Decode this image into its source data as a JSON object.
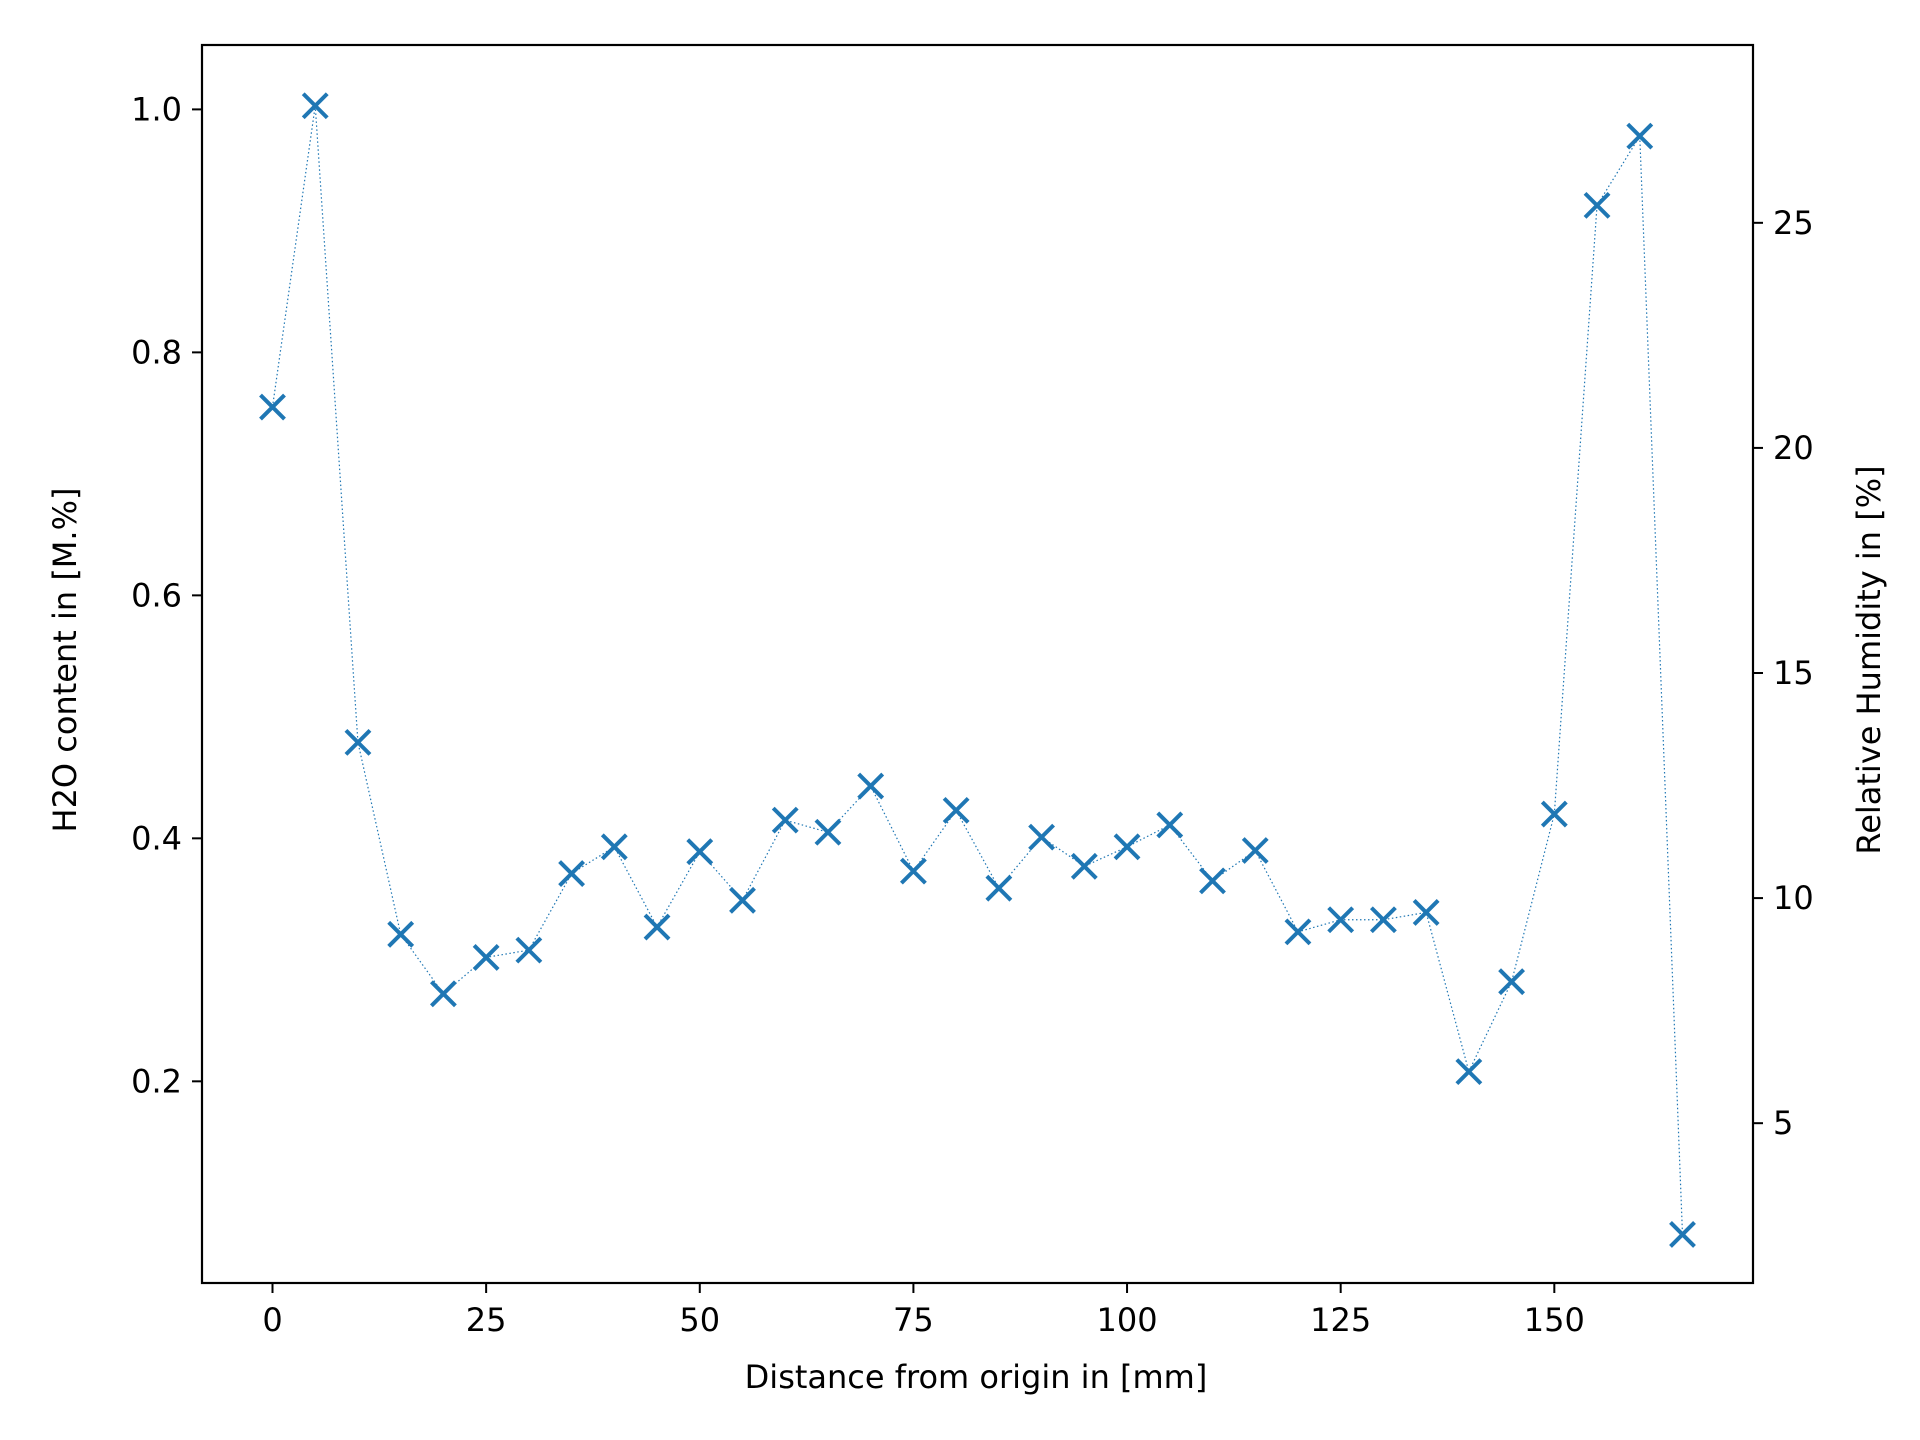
{
  "chart_data": {
    "type": "scatter",
    "title": "",
    "xlabel": "Distance from origin in [mm]",
    "ylabel": "H2O content in [M.%]",
    "y2label": "Relative Humidity in [%]",
    "xlim": [
      -8.25,
      173.25
    ],
    "ylim": [
      0.034,
      1.053
    ],
    "y2lim": [
      1.45,
      28.95
    ],
    "xticks": [
      0,
      25,
      50,
      75,
      100,
      125,
      150
    ],
    "yticks": [
      0.2,
      0.4,
      0.6,
      0.8,
      1.0
    ],
    "ytick_labels": [
      "0.2",
      "0.4",
      "0.6",
      "0.8",
      "1.0"
    ],
    "y2ticks": [
      5,
      10,
      15,
      20,
      25
    ],
    "grid": false,
    "legend": "none",
    "marker": "x",
    "line_style": "dotted",
    "color": "#1f77b4",
    "series": [
      {
        "axis": "left",
        "x": [
          0,
          5,
          10,
          15,
          20,
          25,
          30,
          35,
          40,
          45,
          50,
          55,
          60,
          65,
          70,
          75,
          80,
          85,
          90,
          95,
          100,
          105,
          110,
          115,
          120,
          125,
          130,
          135,
          140,
          145,
          150,
          155,
          160,
          165
        ],
        "values": [
          0.755,
          1.003,
          0.479,
          0.321,
          0.272,
          0.302,
          0.308,
          0.371,
          0.393,
          0.327,
          0.389,
          0.349,
          0.415,
          0.405,
          0.443,
          0.373,
          0.423,
          0.359,
          0.401,
          0.377,
          0.393,
          0.411,
          0.365,
          0.39,
          0.323,
          0.333,
          0.333,
          0.339,
          0.208,
          0.282,
          0.42,
          0.921,
          0.978,
          0.074
        ]
      }
    ]
  }
}
